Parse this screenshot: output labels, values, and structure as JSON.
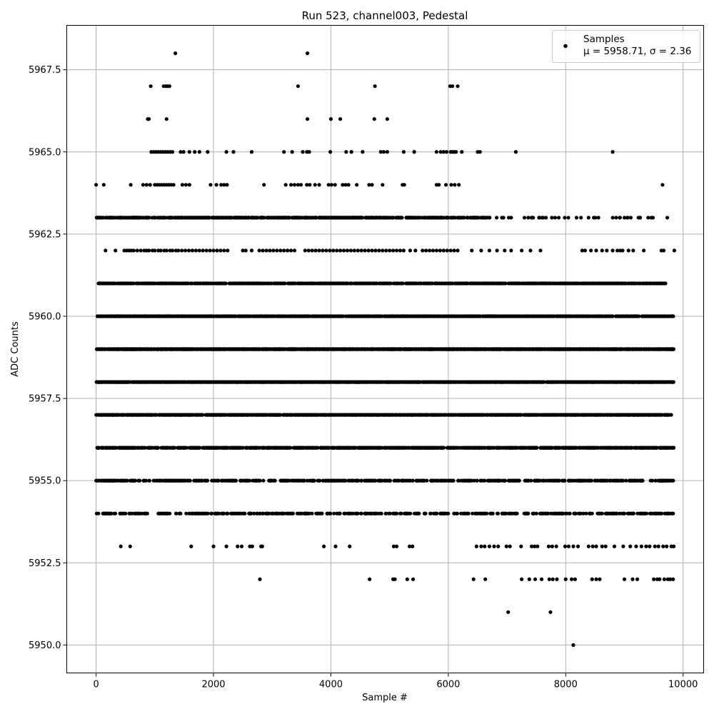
{
  "chart_data": {
    "type": "scatter",
    "title": "Run 523, channel003, Pedestal",
    "xlabel": "Sample #",
    "ylabel": "ADC Counts",
    "xlim": [
      -500,
      10350
    ],
    "ylim": [
      5949.15,
      5968.85
    ],
    "xticks": [
      0,
      2000,
      4000,
      6000,
      8000,
      10000
    ],
    "xtick_labels": [
      "0",
      "2000",
      "4000",
      "6000",
      "8000",
      "10000"
    ],
    "yticks": [
      5950.0,
      5952.5,
      5955.0,
      5957.5,
      5960.0,
      5962.5,
      5965.0,
      5967.5
    ],
    "ytick_labels": [
      "5950.0",
      "5952.5",
      "5955.0",
      "5957.5",
      "5960.0",
      "5962.5",
      "5965.0",
      "5967.5"
    ],
    "grid": true,
    "legend": {
      "placement": "top-right",
      "entries": [
        {
          "label": "Samples",
          "sublabel": "μ = 5958.71, σ = 2.36"
        }
      ]
    },
    "series": [
      {
        "name": "Samples",
        "color": "#000000",
        "marker": "circle",
        "n_samples": 10000,
        "x_range": [
          0,
          9840
        ],
        "levels": [
          {
            "y": 5968,
            "x": [
              1350,
              3600
            ]
          },
          {
            "y": 5967,
            "x": [
              930,
              1150,
              1190,
              1220,
              1250,
              3440,
              4750,
              6030,
              6070,
              6160
            ]
          },
          {
            "y": 5966,
            "x": [
              880,
              900,
              1200,
              3600,
              4000,
              4160,
              4740,
              4960
            ]
          },
          {
            "y": 5965,
            "x": [
              940,
              980,
              1020,
              1060,
              1100,
              1140,
              1180,
              1220,
              1260,
              1300,
              1440,
              1490,
              1590,
              1680,
              1760,
              1900,
              2220,
              2340,
              2650,
              3200,
              3340,
              3520,
              3590,
              3630,
              3990,
              4260,
              4350,
              4540,
              4850,
              4900,
              4960,
              5240,
              5420,
              5800,
              5870,
              5920,
              5970,
              6040,
              6070,
              6100,
              6130,
              6230,
              6500,
              6540,
              7150,
              8800
            ]
          },
          {
            "y": 5964,
            "x": [
              0,
              130,
              590,
              800,
              860,
              920,
              1000,
              1040,
              1080,
              1120,
              1160,
              1200,
              1240,
              1280,
              1320,
              1470,
              1530,
              1590,
              1950,
              2050,
              2130,
              2180,
              2230,
              2860,
              3230,
              3320,
              3380,
              3440,
              3490,
              3590,
              3640,
              3730,
              3800,
              3960,
              4010,
              4070,
              4200,
              4250,
              4300,
              4440,
              4650,
              4700,
              4880,
              5220,
              5250,
              5800,
              5840,
              5960,
              6050,
              6110,
              6180,
              9650
            ]
          },
          {
            "y": 5962,
            "x": [
              160,
              330,
              480,
              520,
              560,
              600,
              640,
              700,
              760,
              820,
              860,
              900,
              960,
              1000,
              1060,
              1100,
              1160,
              1200,
              1260,
              1300,
              1360,
              1400,
              1460,
              1520,
              1580,
              1640,
              1700,
              1760,
              1820,
              1880,
              1940,
              2000,
              2060,
              2120,
              2180,
              2240,
              2500,
              2550,
              2650,
              2780,
              2840,
              2900,
              2960,
              3020,
              3080,
              3140,
              3200,
              3260,
              3320,
              3380,
              3560,
              3620,
              3680,
              3740,
              3800,
              3860,
              3920,
              3980,
              4040,
              4100,
              4160,
              4220,
              4280,
              4340,
              4400,
              4460,
              4520,
              4580,
              4640,
              4700,
              4760,
              4820,
              4880,
              4940,
              5000,
              5060,
              5120,
              5180,
              5240,
              5350,
              5440,
              5560,
              5620,
              5680,
              5740,
              5800,
              5860,
              5920,
              5980,
              6040,
              6100,
              6160,
              6400,
              6560,
              6700,
              6830,
              6960,
              7070,
              7250,
              7400,
              7570,
              8280,
              8330,
              8430,
              8520,
              8620,
              8700,
              8800,
              8880,
              8930,
              8970,
              9070,
              9150,
              9330,
              9630,
              9670,
              9850
            ]
          },
          {
            "y": 5950,
            "x": [
              8130
            ]
          },
          {
            "y": 5951,
            "x": [
              7020,
              7740
            ]
          },
          {
            "y": 5952,
            "x": [
              2790,
              4660,
              5060,
              5090,
              5300,
              5400,
              6430,
              6630,
              7250,
              7380,
              7480,
              7590,
              7720,
              7780,
              7850,
              8000,
              8100,
              8160,
              8450,
              8520,
              8580,
              9000,
              9140,
              9220,
              9500,
              9560,
              9600,
              9680,
              9740,
              9780,
              9830
            ]
          },
          {
            "y": 5953,
            "x": [
              420,
              580,
              1620,
              2000,
              2220,
              2410,
              2480,
              2620,
              2660,
              2810,
              2830,
              3880,
              4080,
              4320,
              5070,
              5120,
              5340,
              5390,
              6480,
              6560,
              6620,
              6700,
              6780,
              6850,
              6990,
              7050,
              7240,
              7420,
              7470,
              7520,
              7710,
              7770,
              7840,
              7990,
              8050,
              8130,
              8210,
              8390,
              8460,
              8520,
              8620,
              8680,
              8830,
              8980,
              9100,
              9200,
              9290,
              9370,
              9430,
              9520,
              9580,
              9660,
              9720,
              9800,
              9840
            ]
          }
        ],
        "dense_levels": [
          {
            "y": 5963,
            "x_range": [
              0,
              9750
            ],
            "approx_count": 700,
            "gaps": [
              [
                6700,
                9750
              ]
            ]
          },
          {
            "y": 5961,
            "x_range": [
              40,
              9720
            ],
            "approx_count": 1200
          },
          {
            "y": 5960,
            "x_range": [
              0,
              9840
            ],
            "approx_count": 1500
          },
          {
            "y": 5959,
            "x_range": [
              0,
              9840
            ],
            "approx_count": 1900
          },
          {
            "y": 5958,
            "x_range": [
              0,
              9840
            ],
            "approx_count": 1700
          },
          {
            "y": 5957,
            "x_range": [
              0,
              9840
            ],
            "approx_count": 1300
          },
          {
            "y": 5956,
            "x_range": [
              0,
              9840
            ],
            "approx_count": 1000
          },
          {
            "y": 5955,
            "x_range": [
              0,
              9840
            ],
            "approx_count": 600
          },
          {
            "y": 5954,
            "x_range": [
              0,
              9840
            ],
            "approx_count": 450
          }
        ]
      }
    ]
  }
}
